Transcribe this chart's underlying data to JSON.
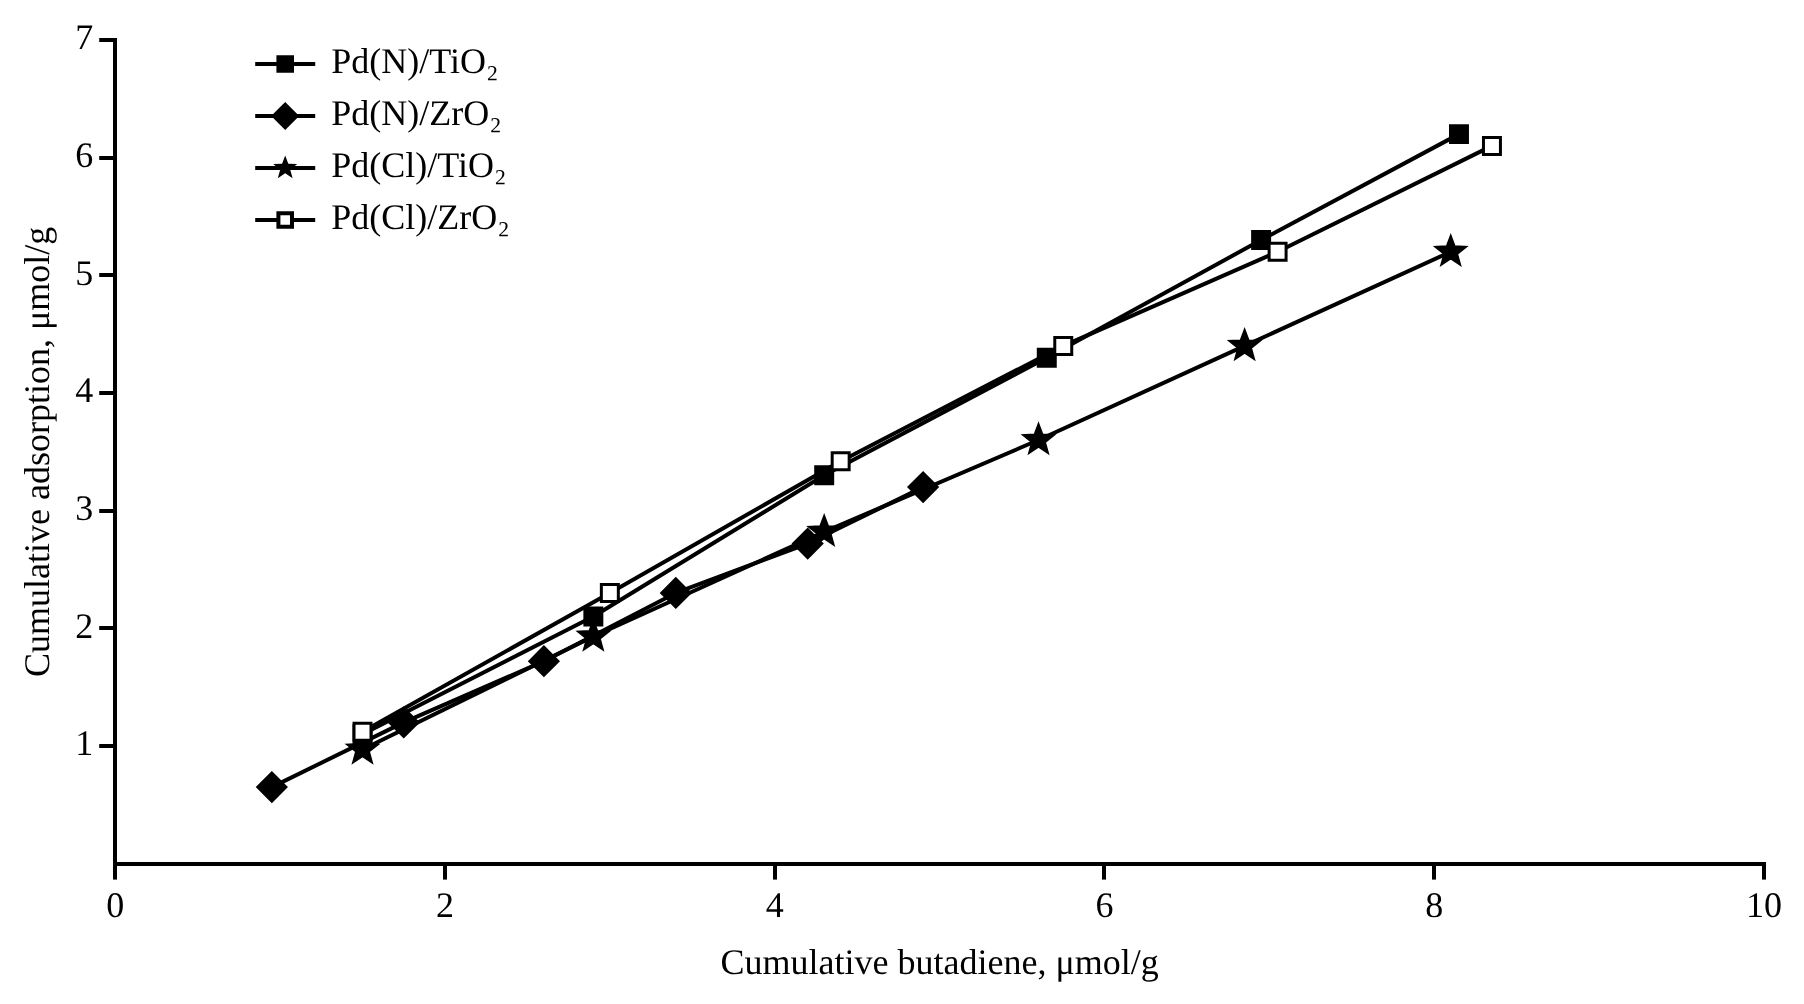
{
  "chart_data": {
    "type": "line",
    "xlabel": "Cumulative butadiene, μmol/g",
    "ylabel": "Cumulative adsorption, μmol/g",
    "xlim": [
      0,
      10
    ],
    "xticks": [
      0,
      2,
      4,
      6,
      8,
      10
    ],
    "ylim": [
      0,
      7
    ],
    "yticks": [
      1,
      2,
      3,
      4,
      5,
      6,
      7
    ],
    "grid": false,
    "legend": "top left",
    "line_style": "solid",
    "series": [
      {
        "name": "Pd(N)/TiO₂",
        "color": "#000000",
        "marker": "square",
        "x": [
          1.5,
          2.9,
          4.3,
          5.65,
          6.95,
          8.15
        ],
        "values": [
          1.1,
          2.1,
          3.3,
          4.3,
          5.3,
          6.2
        ]
      },
      {
        "name": "Pd(N)/ZrO₂",
        "color": "#000000",
        "marker": "diamond",
        "x": [
          0.95,
          1.75,
          2.6,
          3.4,
          4.2,
          4.9
        ],
        "values": [
          0.65,
          1.2,
          1.72,
          2.3,
          2.72,
          3.2
        ]
      },
      {
        "name": "Pd(Cl)/TiO₂",
        "color": "#000000",
        "marker": "star",
        "x": [
          1.5,
          2.9,
          4.3,
          5.6,
          6.85,
          8.1
        ],
        "values": [
          0.97,
          1.93,
          2.82,
          3.6,
          4.4,
          5.2
        ]
      },
      {
        "name": "Pd(Cl)/ZrO₂",
        "color": "#000000",
        "marker": "square",
        "x": [
          1.5,
          3.0,
          4.4,
          5.75,
          7.05,
          8.35
        ],
        "values": [
          1.12,
          2.3,
          3.42,
          4.4,
          5.2,
          6.1
        ]
      }
    ]
  }
}
